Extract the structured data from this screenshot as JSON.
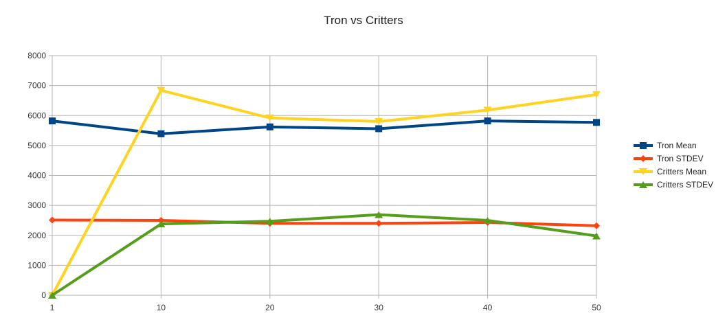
{
  "chart_data": {
    "type": "line",
    "title": "Tron vs Critters",
    "xlabel": "",
    "ylabel": "",
    "categories": [
      "1",
      "10",
      "20",
      "30",
      "40",
      "50"
    ],
    "ylim": [
      0,
      8000
    ],
    "yticks": [
      0,
      1000,
      2000,
      3000,
      4000,
      5000,
      6000,
      7000,
      8000
    ],
    "grid": true,
    "legend_position": "right",
    "series": [
      {
        "name": "Tron Mean",
        "color": "#004586",
        "marker": "square",
        "values": [
          5820,
          5390,
          5620,
          5560,
          5820,
          5770
        ]
      },
      {
        "name": "Tron STDEV",
        "color": "#ff420e",
        "marker": "diamond",
        "values": [
          2510,
          2500,
          2400,
          2400,
          2430,
          2320
        ]
      },
      {
        "name": "Critters Mean",
        "color": "#ffd320",
        "marker": "triangle-down",
        "values": [
          0,
          6840,
          5920,
          5800,
          6180,
          6700
        ]
      },
      {
        "name": "Critters STDEV",
        "color": "#579d1c",
        "marker": "triangle-up",
        "values": [
          0,
          2380,
          2470,
          2690,
          2500,
          1980
        ]
      }
    ]
  }
}
